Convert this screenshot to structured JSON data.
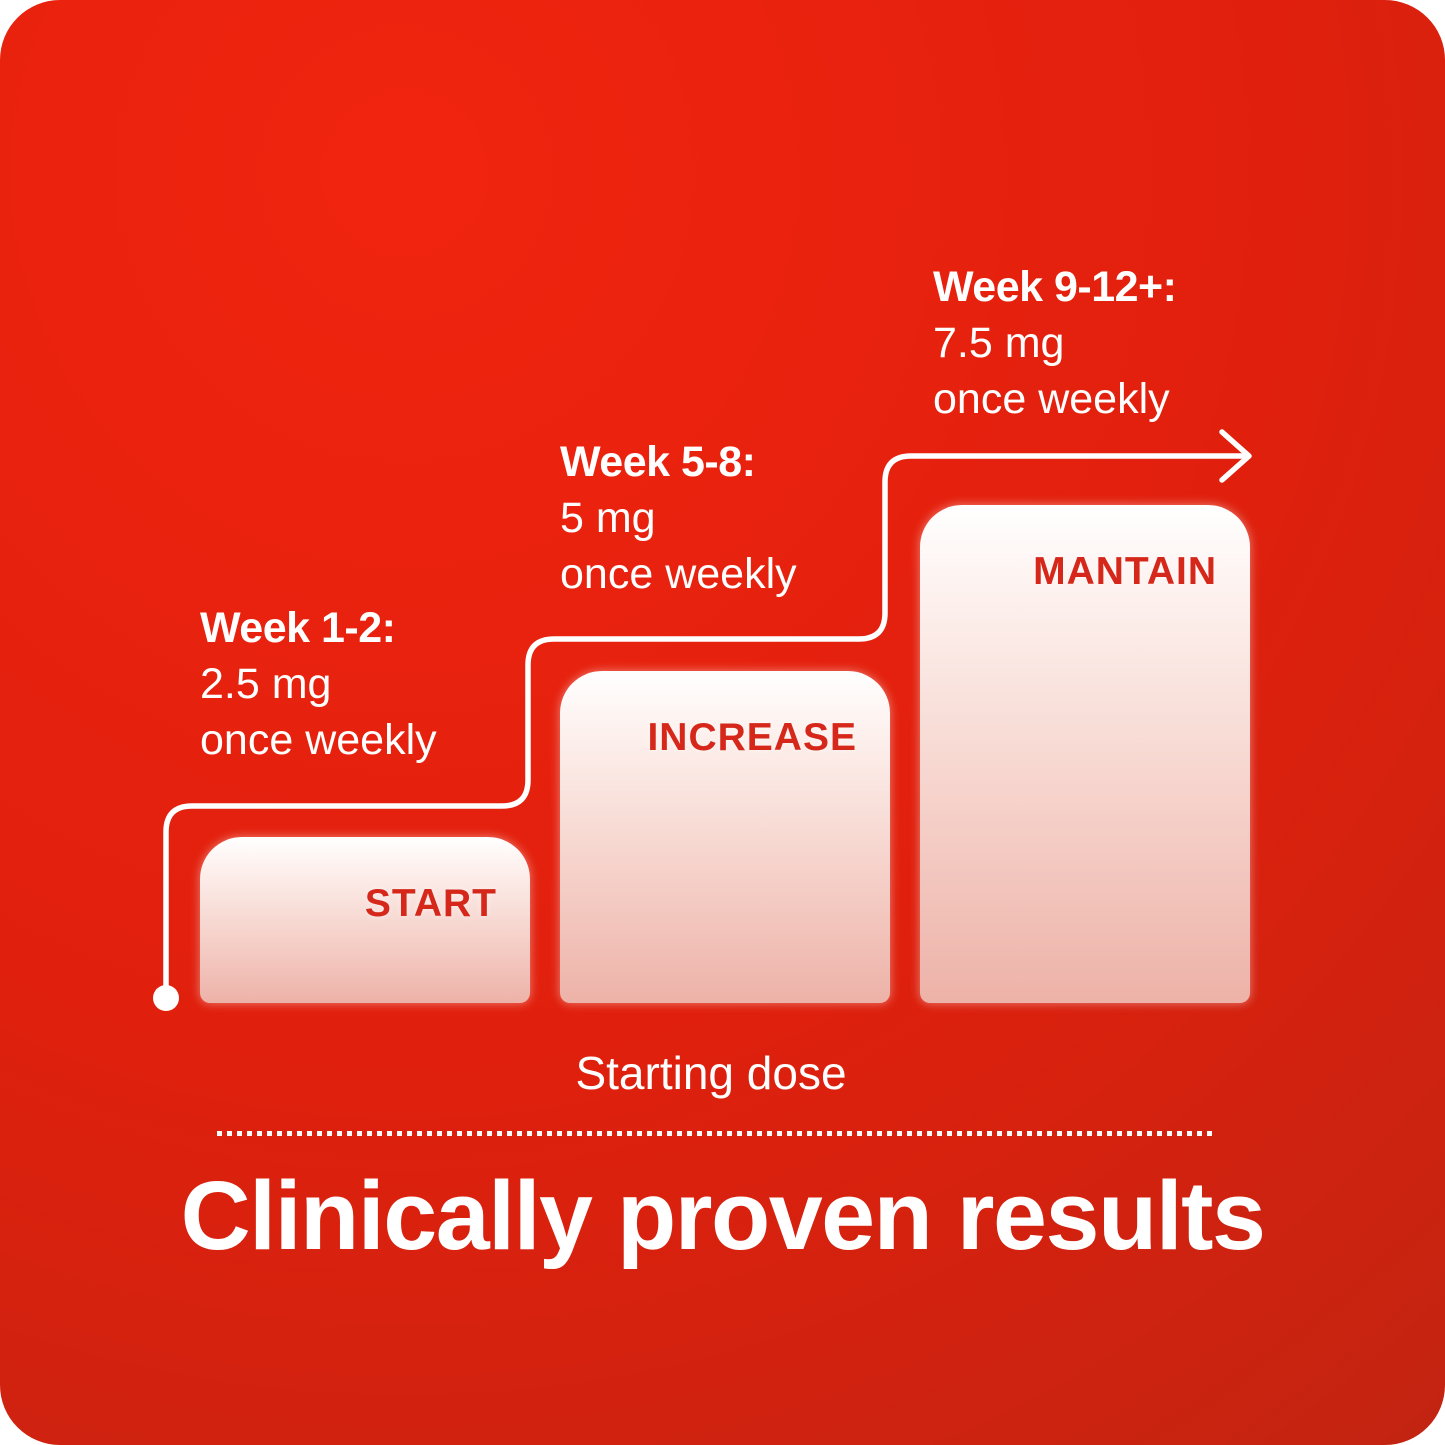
{
  "colors": {
    "bg_top": "#f1240f",
    "bg_mid": "#e0200d",
    "bg_bottom": "#9c2c13",
    "bar_top": "#ffffff",
    "bar_bottom": "#edb2a8",
    "bar_label": "#d6281a",
    "line": "#ffffff",
    "text": "#ffffff"
  },
  "chart_data": {
    "type": "bar",
    "title": "Clinically proven results",
    "x_caption": "Starting dose",
    "categories": [
      "Week 1-2",
      "Week 5-8",
      "Week 9-12+"
    ],
    "values": [
      2.5,
      5,
      7.5
    ],
    "value_unit": "mg",
    "ylim": [
      0,
      7.5
    ],
    "grid": false,
    "legend_position": "none",
    "steps": [
      {
        "week_label": "Week 1-2:",
        "dose": "2.5 mg",
        "frequency": "once weekly",
        "bar_label": "START",
        "value": 2.5
      },
      {
        "week_label": "Week 5-8:",
        "dose": "5 mg",
        "frequency": "once weekly",
        "bar_label": "INCREASE",
        "value": 5
      },
      {
        "week_label": "Week 9-12+:",
        "dose": "7.5 mg",
        "frequency": "once weekly",
        "bar_label": "MANTAIN",
        "value": 7.5
      }
    ]
  },
  "footer": {
    "caption": "Starting dose",
    "headline": "Clinically proven results"
  }
}
